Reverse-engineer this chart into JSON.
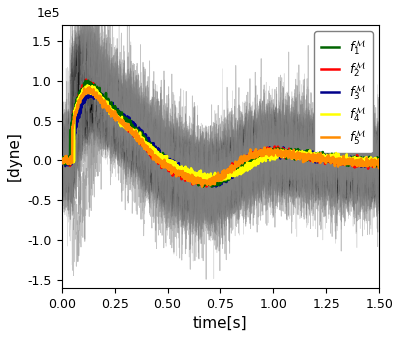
{
  "title": "",
  "xlabel": "time[s]",
  "ylabel": "[dyne]",
  "xlim": [
    0.0,
    1.5
  ],
  "ylim": [
    -160000.0,
    170000.0
  ],
  "yticks": [
    -150000.0,
    -100000.0,
    -50000.0,
    0.0,
    50000.0,
    100000.0,
    150000.0
  ],
  "ytick_labels": [
    "-1.5",
    "-1.0",
    "-0.5",
    "0.0",
    "0.5",
    "1.0",
    "1.5"
  ],
  "xticks": [
    0.0,
    0.25,
    0.5,
    0.75,
    1.0,
    1.25,
    1.5
  ],
  "legend_labels": [
    "$f_1^\\mathcal{M}$",
    "$f_2^\\mathcal{M}$",
    "$f_3^\\mathcal{M}$",
    "$f_4^\\mathcal{M}$",
    "$f_5^\\mathcal{M}$"
  ],
  "legend_colors": [
    "#006400",
    "#ff0000",
    "#00008b",
    "#ffff00",
    "#ff8c00"
  ],
  "n_background_black": 60,
  "n_background_gray": 8,
  "background_color": "#ffffff",
  "figsize": [
    4.0,
    3.38
  ],
  "dpi": 100
}
